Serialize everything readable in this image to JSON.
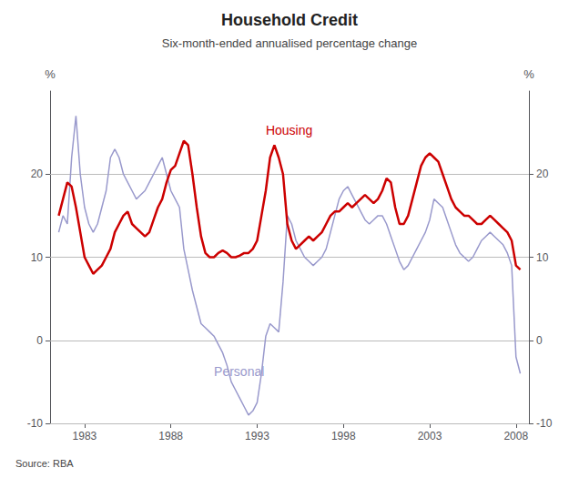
{
  "chart_data": {
    "type": "line",
    "title": "Household Credit",
    "subtitle": "Six-month-ended annualised percentage change",
    "source": "Source: RBA",
    "x": [
      1981.5,
      1981.75,
      1982.0,
      1982.25,
      1982.5,
      1982.75,
      1983.0,
      1983.25,
      1983.5,
      1983.75,
      1984.0,
      1984.25,
      1984.5,
      1984.75,
      1985.0,
      1985.25,
      1985.5,
      1985.75,
      1986.0,
      1986.25,
      1986.5,
      1986.75,
      1987.0,
      1987.25,
      1987.5,
      1987.75,
      1988.0,
      1988.25,
      1988.5,
      1988.75,
      1989.0,
      1989.25,
      1989.5,
      1989.75,
      1990.0,
      1990.25,
      1990.5,
      1990.75,
      1991.0,
      1991.25,
      1991.5,
      1991.75,
      1992.0,
      1992.25,
      1992.5,
      1992.75,
      1993.0,
      1993.25,
      1993.5,
      1993.75,
      1994.0,
      1994.25,
      1994.5,
      1994.75,
      1995.0,
      1995.25,
      1995.5,
      1995.75,
      1996.0,
      1996.25,
      1996.5,
      1996.75,
      1997.0,
      1997.25,
      1997.5,
      1997.75,
      1998.0,
      1998.25,
      1998.5,
      1998.75,
      1999.0,
      1999.25,
      1999.5,
      1999.75,
      2000.0,
      2000.25,
      2000.5,
      2000.75,
      2001.0,
      2001.25,
      2001.5,
      2001.75,
      2002.0,
      2002.25,
      2002.5,
      2002.75,
      2003.0,
      2003.25,
      2003.5,
      2003.75,
      2004.0,
      2004.25,
      2004.5,
      2004.75,
      2005.0,
      2005.25,
      2005.5,
      2005.75,
      2006.0,
      2006.25,
      2006.5,
      2006.75,
      2007.0,
      2007.25,
      2007.5,
      2007.75,
      2008.0,
      2008.25
    ],
    "series": [
      {
        "name": "Personal",
        "color": "#9999cc",
        "values": [
          13.0,
          15.0,
          14.0,
          22.0,
          27.0,
          20.0,
          16.0,
          14.0,
          13.0,
          14.0,
          16.0,
          18.0,
          22.0,
          23.0,
          22.0,
          20.0,
          19.0,
          18.0,
          17.0,
          17.5,
          18.0,
          19.0,
          20.0,
          21.0,
          22.0,
          20.0,
          18.0,
          17.0,
          16.0,
          11.0,
          8.5,
          6.0,
          4.0,
          2.0,
          1.5,
          1.0,
          0.5,
          -0.5,
          -1.5,
          -3.0,
          -5.0,
          -6.0,
          -7.0,
          -8.0,
          -9.0,
          -8.5,
          -7.5,
          -4.0,
          0.5,
          2.0,
          1.5,
          1.0,
          7.0,
          15.0,
          14.0,
          12.0,
          11.0,
          10.0,
          9.5,
          9.0,
          9.5,
          10.0,
          11.0,
          13.0,
          15.0,
          17.0,
          18.0,
          18.5,
          17.5,
          16.5,
          15.5,
          14.5,
          14.0,
          14.5,
          15.0,
          15.0,
          14.0,
          12.5,
          11.0,
          9.5,
          8.5,
          9.0,
          10.0,
          11.0,
          12.0,
          13.0,
          14.5,
          17.0,
          16.5,
          16.0,
          14.5,
          13.0,
          11.5,
          10.5,
          10.0,
          9.5,
          10.0,
          11.0,
          12.0,
          12.5,
          13.0,
          12.5,
          12.0,
          11.5,
          10.5,
          9.0,
          -2.0,
          -4.0
        ]
      },
      {
        "name": "Housing",
        "color": "#cc0000",
        "values": [
          15.0,
          17.0,
          19.0,
          18.5,
          16.0,
          13.0,
          10.0,
          9.0,
          8.0,
          8.5,
          9.0,
          10.0,
          11.0,
          13.0,
          14.0,
          15.0,
          15.5,
          14.0,
          13.5,
          13.0,
          12.5,
          13.0,
          14.5,
          16.0,
          17.0,
          19.0,
          20.5,
          21.0,
          22.5,
          24.0,
          23.5,
          20.0,
          16.0,
          12.5,
          10.5,
          10.0,
          10.0,
          10.5,
          10.8,
          10.5,
          10.0,
          10.0,
          10.2,
          10.5,
          10.5,
          11.0,
          12.0,
          15.0,
          18.0,
          22.0,
          23.5,
          22.0,
          20.0,
          14.0,
          12.0,
          11.0,
          11.5,
          12.0,
          12.5,
          12.0,
          12.5,
          13.0,
          14.0,
          15.0,
          15.5,
          15.5,
          16.0,
          16.5,
          16.0,
          16.5,
          17.0,
          17.5,
          17.0,
          16.5,
          17.0,
          18.0,
          19.5,
          19.0,
          16.0,
          14.0,
          14.0,
          15.0,
          17.0,
          19.0,
          21.0,
          22.0,
          22.5,
          22.0,
          21.5,
          20.0,
          18.5,
          17.0,
          16.0,
          15.5,
          15.0,
          15.0,
          14.5,
          14.0,
          14.0,
          14.5,
          15.0,
          14.5,
          14.0,
          13.5,
          13.0,
          12.0,
          9.0,
          8.5
        ]
      }
    ],
    "xlim": [
      1981.0,
      2008.75
    ],
    "xticks": [
      1983,
      1988,
      1993,
      1998,
      2003,
      2008
    ],
    "ylim": [
      -10,
      30
    ],
    "yticks": [
      -10,
      0,
      10,
      20
    ],
    "y2lim": [
      -10,
      30
    ],
    "y2ticks": [
      -10,
      0,
      10,
      20
    ],
    "ylabel": "%",
    "y2label": "%",
    "grid": true,
    "annotations": [
      {
        "text": "Housing",
        "x": 1993.5,
        "y": 24.5,
        "color": "#cc0000"
      },
      {
        "text": "Personal",
        "x": 1990.5,
        "y": -4.5,
        "color": "#9999cc"
      }
    ]
  }
}
